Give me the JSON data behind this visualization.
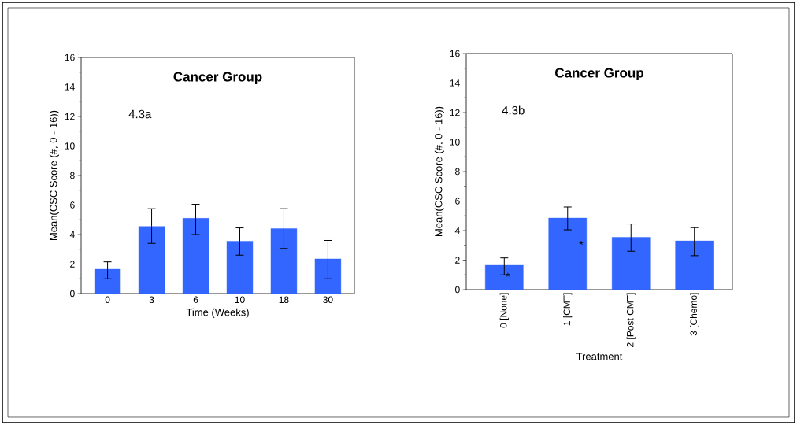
{
  "chart_data": [
    {
      "type": "bar",
      "title": "Cancer Group",
      "xlabel": "Time (Weeks)",
      "ylabel": "Mean(CSC Score (#, 0 - 16))",
      "categories": [
        "0",
        "3",
        "6",
        "10",
        "18",
        "30"
      ],
      "values": [
        1.65,
        4.55,
        5.1,
        3.55,
        4.4,
        2.35
      ],
      "color": "#3366ff",
      "errors": [
        [
          1.0,
          2.15
        ],
        [
          3.4,
          5.75
        ],
        [
          4.0,
          6.05
        ],
        [
          2.6,
          4.45
        ],
        [
          3.05,
          5.75
        ],
        [
          1.0,
          3.6
        ]
      ],
      "ylim": [
        0,
        16
      ],
      "yticks": [
        0,
        2,
        4,
        6,
        8,
        10,
        12,
        14,
        16
      ],
      "annotations": [
        "4.3a"
      ]
    },
    {
      "type": "bar",
      "title": "Cancer Group",
      "xlabel": "Treatment",
      "ylabel": "Mean(CSC Score (#, 0 - 16))",
      "categories": [
        "0 [None]",
        "1 [CMT]",
        "2 [Post CMT]",
        "3 [Chemo]"
      ],
      "values": [
        1.65,
        4.85,
        3.55,
        3.3
      ],
      "color": "#3366ff",
      "errors": [
        [
          1.0,
          2.15
        ],
        [
          4.05,
          5.6
        ],
        [
          2.6,
          4.45
        ],
        [
          2.3,
          4.2
        ]
      ],
      "ylim": [
        0,
        16
      ],
      "yticks": [
        0,
        2,
        4,
        6,
        8,
        10,
        12,
        14,
        16
      ],
      "annotations": [
        "4.3b",
        "*",
        "*"
      ]
    }
  ]
}
